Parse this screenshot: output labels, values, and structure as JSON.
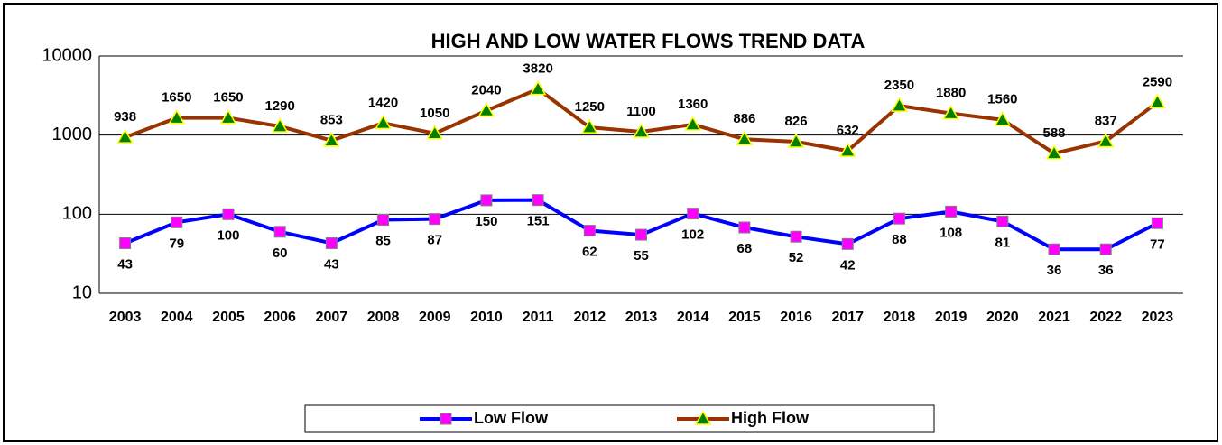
{
  "chart_data": {
    "type": "line",
    "title": "HIGH AND LOW WATER FLOWS TREND DATA",
    "categories": [
      "2003",
      "2004",
      "2005",
      "2006",
      "2007",
      "2008",
      "2009",
      "2010",
      "2011",
      "2012",
      "2013",
      "2014",
      "2015",
      "2016",
      "2017",
      "2018",
      "2019",
      "2020",
      "2021",
      "2022",
      "2023"
    ],
    "series": [
      {
        "name": "Low Flow",
        "color": "#0000ff",
        "marker_color": "#ff00ff",
        "values": [
          43,
          79,
          100,
          60,
          43,
          85,
          87,
          150,
          151,
          62,
          55,
          102,
          68,
          52,
          42,
          88,
          108,
          81,
          36,
          36,
          77
        ]
      },
      {
        "name": "High Flow",
        "color": "#993300",
        "marker_color": "#008000",
        "values": [
          938,
          1650,
          1650,
          1290,
          853,
          1420,
          1050,
          2040,
          3820,
          1250,
          1100,
          1360,
          886,
          826,
          632,
          2350,
          1880,
          1560,
          588,
          837,
          2590
        ]
      }
    ],
    "ylim": [
      10,
      10000
    ],
    "yticks": [
      10,
      100,
      1000,
      10000
    ],
    "log_scale": true,
    "grid": true,
    "legend": "bottom"
  }
}
